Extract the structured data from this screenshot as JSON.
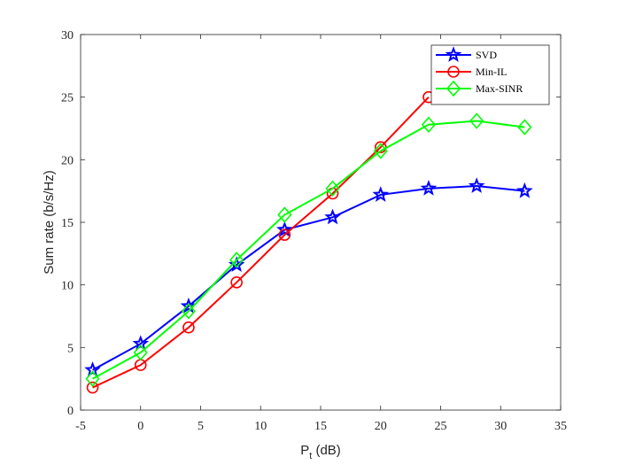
{
  "chart_data": {
    "type": "line",
    "xlabel_main": "P",
    "xlabel_sub": "t",
    "xlabel_unit": " (dB)",
    "ylabel": "Sum rate (b/s/Hz)",
    "xlim": [
      -5,
      35
    ],
    "ylim": [
      0,
      30
    ],
    "xticks": [
      -5,
      0,
      5,
      10,
      15,
      20,
      25,
      30,
      35
    ],
    "yticks": [
      0,
      5,
      10,
      15,
      20,
      25,
      30
    ],
    "grid": false,
    "legend_position": "top-right",
    "series": [
      {
        "name": "SVD",
        "color": "#0000ff",
        "marker": "star",
        "x": [
          -4,
          0,
          4,
          8,
          12,
          16,
          20,
          24,
          28,
          32
        ],
        "values": [
          3.2,
          5.3,
          8.3,
          11.6,
          14.4,
          15.4,
          17.2,
          17.7,
          17.9,
          17.5
        ]
      },
      {
        "name": "Min-IL",
        "color": "#ff0000",
        "marker": "circle",
        "x": [
          -4,
          0,
          4,
          8,
          12,
          16,
          20,
          24
        ],
        "values": [
          1.8,
          3.6,
          6.6,
          10.2,
          14.0,
          17.3,
          21.0,
          25.0
        ]
      },
      {
        "name": "Max-SINR",
        "color": "#00ff00",
        "marker": "diamond",
        "x": [
          -4,
          0,
          4,
          8,
          12,
          16,
          20,
          24,
          28,
          32
        ],
        "values": [
          2.5,
          4.6,
          7.9,
          12.0,
          15.6,
          17.7,
          20.7,
          22.8,
          23.1,
          22.6
        ]
      }
    ]
  }
}
